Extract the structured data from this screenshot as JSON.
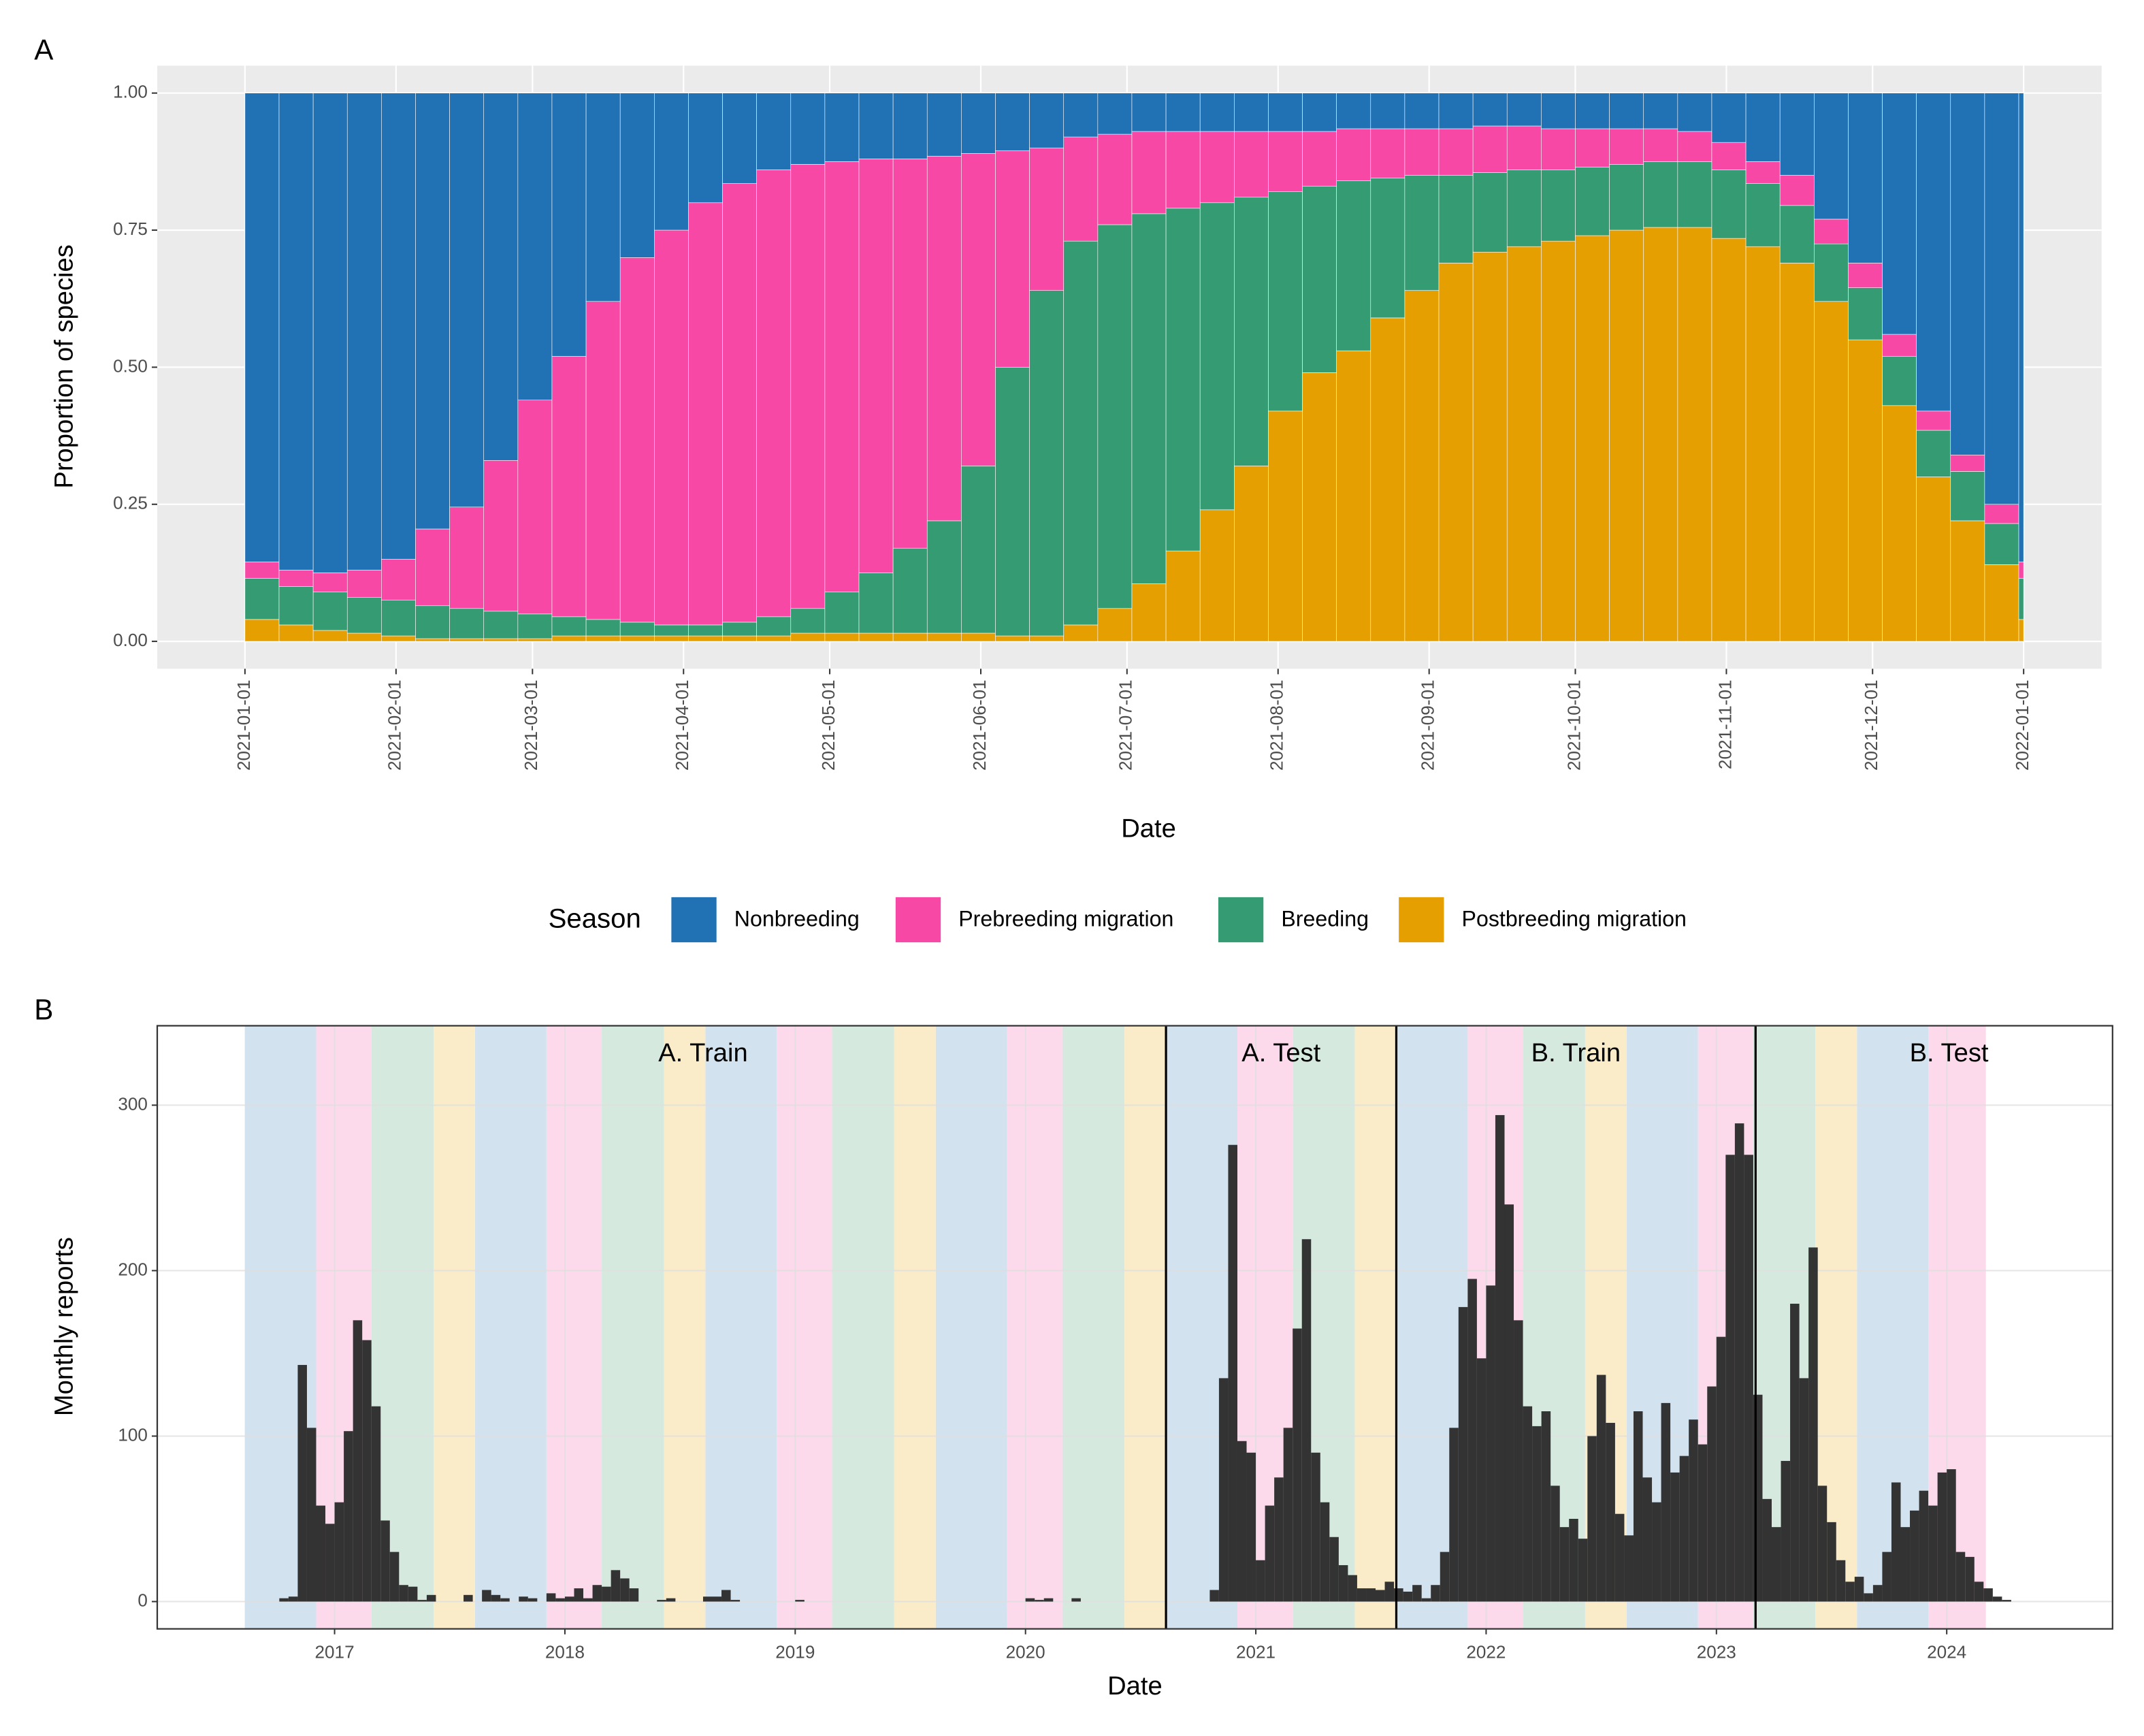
{
  "chart_data": [
    {
      "tag": "A",
      "type": "bar",
      "stacked": true,
      "x": [
        "2021-01-01",
        "2021-01-08",
        "2021-01-15",
        "2021-01-22",
        "2021-01-29",
        "2021-02-05",
        "2021-02-12",
        "2021-02-19",
        "2021-02-26",
        "2021-03-05",
        "2021-03-12",
        "2021-03-19",
        "2021-03-26",
        "2021-04-02",
        "2021-04-09",
        "2021-04-16",
        "2021-04-23",
        "2021-04-30",
        "2021-05-07",
        "2021-05-14",
        "2021-05-21",
        "2021-05-28",
        "2021-06-04",
        "2021-06-11",
        "2021-06-18",
        "2021-06-25",
        "2021-07-02",
        "2021-07-09",
        "2021-07-16",
        "2021-07-23",
        "2021-07-30",
        "2021-08-06",
        "2021-08-13",
        "2021-08-20",
        "2021-08-27",
        "2021-09-03",
        "2021-09-10",
        "2021-09-17",
        "2021-09-24",
        "2021-10-01",
        "2021-10-08",
        "2021-10-15",
        "2021-10-22",
        "2021-10-29",
        "2021-11-05",
        "2021-11-12",
        "2021-11-19",
        "2021-11-26",
        "2021-12-03",
        "2021-12-10",
        "2021-12-17",
        "2021-12-24",
        "2021-12-31"
      ],
      "xlim": [
        "2020-12-14",
        "2022-01-17"
      ],
      "xticks": [
        "2021-01-01",
        "2021-02-01",
        "2021-03-01",
        "2021-04-01",
        "2021-05-01",
        "2021-06-01",
        "2021-07-01",
        "2021-08-01",
        "2021-09-01",
        "2021-10-01",
        "2021-11-01",
        "2021-12-01",
        "2022-01-01"
      ],
      "ylim": [
        -0.05,
        1.05
      ],
      "yticks": [
        {
          "value": 0,
          "label": "0.00"
        },
        {
          "value": 0.25,
          "label": "0.25"
        },
        {
          "value": 0.5,
          "label": "0.50"
        },
        {
          "value": 0.75,
          "label": "0.75"
        },
        {
          "value": 1,
          "label": "1.00"
        }
      ],
      "xlabel": "Date",
      "ylabel": "Proportion of species",
      "legend_title": "Season",
      "legend": "bottom",
      "grid": true,
      "series": [
        {
          "name": "Nonbreeding",
          "color": "#2171b5",
          "values": [
            0.855,
            0.87,
            0.875,
            0.87,
            0.85,
            0.795,
            0.755,
            0.67,
            0.56,
            0.48,
            0.38,
            0.3,
            0.25,
            0.2,
            0.165,
            0.14,
            0.13,
            0.125,
            0.12,
            0.12,
            0.115,
            0.11,
            0.105,
            0.1,
            0.08,
            0.075,
            0.07,
            0.07,
            0.07,
            0.07,
            0.07,
            0.07,
            0.065,
            0.065,
            0.065,
            0.065,
            0.06,
            0.06,
            0.065,
            0.065,
            0.065,
            0.065,
            0.07,
            0.09,
            0.125,
            0.15,
            0.23,
            0.31,
            0.44,
            0.58,
            0.66,
            0.75,
            0.855
          ]
        },
        {
          "name": "Prebreeding migration",
          "color": "#f748a5",
          "values": [
            0.03,
            0.03,
            0.035,
            0.05,
            0.075,
            0.14,
            0.185,
            0.275,
            0.39,
            0.475,
            0.58,
            0.665,
            0.72,
            0.77,
            0.8,
            0.815,
            0.81,
            0.785,
            0.755,
            0.71,
            0.665,
            0.57,
            0.395,
            0.26,
            0.19,
            0.165,
            0.15,
            0.14,
            0.13,
            0.12,
            0.11,
            0.1,
            0.095,
            0.09,
            0.085,
            0.085,
            0.085,
            0.08,
            0.075,
            0.07,
            0.065,
            0.06,
            0.055,
            0.05,
            0.04,
            0.055,
            0.045,
            0.045,
            0.04,
            0.035,
            0.03,
            0.035,
            0.03
          ]
        },
        {
          "name": "Breeding",
          "color": "#359b73",
          "values": [
            0.075,
            0.07,
            0.07,
            0.065,
            0.065,
            0.06,
            0.055,
            0.05,
            0.045,
            0.035,
            0.03,
            0.025,
            0.02,
            0.02,
            0.025,
            0.035,
            0.045,
            0.075,
            0.11,
            0.155,
            0.205,
            0.305,
            0.49,
            0.63,
            0.7,
            0.7,
            0.675,
            0.625,
            0.56,
            0.49,
            0.4,
            0.34,
            0.31,
            0.255,
            0.21,
            0.16,
            0.145,
            0.14,
            0.13,
            0.125,
            0.12,
            0.12,
            0.12,
            0.125,
            0.115,
            0.105,
            0.105,
            0.095,
            0.09,
            0.085,
            0.09,
            0.075,
            0.075
          ]
        },
        {
          "name": "Postbreeding migration",
          "color": "#e69f00",
          "values": [
            0.04,
            0.03,
            0.02,
            0.015,
            0.01,
            0.005,
            0.005,
            0.005,
            0.005,
            0.01,
            0.01,
            0.01,
            0.01,
            0.01,
            0.01,
            0.01,
            0.015,
            0.015,
            0.015,
            0.015,
            0.015,
            0.015,
            0.01,
            0.01,
            0.03,
            0.06,
            0.105,
            0.165,
            0.24,
            0.32,
            0.42,
            0.49,
            0.53,
            0.59,
            0.64,
            0.69,
            0.71,
            0.72,
            0.73,
            0.74,
            0.75,
            0.755,
            0.755,
            0.735,
            0.72,
            0.69,
            0.62,
            0.55,
            0.43,
            0.3,
            0.22,
            0.14,
            0.04
          ]
        }
      ]
    },
    {
      "tag": "B",
      "type": "histogram",
      "color": "#333333",
      "bins": [
        2016.72,
        2016.76,
        2016.8,
        2016.84,
        2016.88,
        2016.92,
        2016.96,
        2017,
        2017.04,
        2017.08,
        2017.12,
        2017.16,
        2017.2,
        2017.24,
        2017.28,
        2017.32,
        2017.36,
        2017.4,
        2017.44,
        2017.48,
        2017.52,
        2017.56,
        2017.6,
        2017.64,
        2017.68,
        2017.72,
        2017.76,
        2017.8,
        2017.84,
        2017.88,
        2017.92,
        2017.96,
        2018,
        2018.04,
        2018.08,
        2018.12,
        2018.16,
        2018.2,
        2018.24,
        2018.28,
        2018.32,
        2018.36,
        2018.4,
        2018.44,
        2018.48,
        2018.52,
        2018.56,
        2018.6,
        2018.64,
        2018.68,
        2018.72,
        2018.76,
        2018.8,
        2018.84,
        2018.88,
        2018.92,
        2018.96,
        2019,
        2019.04,
        2019.08,
        2019.12,
        2019.16,
        2019.2,
        2019.24,
        2019.28,
        2019.32,
        2019.36,
        2019.4,
        2019.44,
        2019.48,
        2019.52,
        2019.56,
        2019.6,
        2019.64,
        2019.68,
        2019.72,
        2019.76,
        2019.8,
        2019.84,
        2019.88,
        2019.92,
        2019.96,
        2020,
        2020.04,
        2020.08,
        2020.12,
        2020.16,
        2020.2,
        2020.24,
        2020.28,
        2020.32,
        2020.36,
        2020.4,
        2020.44,
        2020.48,
        2020.52,
        2020.56,
        2020.6,
        2020.64,
        2020.68,
        2020.72,
        2020.76,
        2020.8,
        2020.84,
        2020.88,
        2020.92,
        2020.96,
        2021,
        2021.04,
        2021.08,
        2021.12,
        2021.16,
        2021.2,
        2021.24,
        2021.28,
        2021.32,
        2021.36,
        2021.4,
        2021.44,
        2021.48,
        2021.52,
        2021.56,
        2021.6,
        2021.64,
        2021.68,
        2021.72,
        2021.76,
        2021.8,
        2021.84,
        2021.88,
        2021.92,
        2021.96,
        2022,
        2022.04,
        2022.08,
        2022.12,
        2022.16,
        2022.2,
        2022.24,
        2022.28,
        2022.32,
        2022.36,
        2022.4,
        2022.44,
        2022.48,
        2022.52,
        2022.56,
        2022.6,
        2022.64,
        2022.68,
        2022.72,
        2022.76,
        2022.8,
        2022.84,
        2022.88,
        2022.92,
        2022.96,
        2023,
        2023.04,
        2023.08,
        2023.12,
        2023.16,
        2023.2,
        2023.24,
        2023.28,
        2023.32,
        2023.36,
        2023.4,
        2023.44,
        2023.48,
        2023.52,
        2023.56,
        2023.6,
        2023.64,
        2023.68,
        2023.72,
        2023.76,
        2023.8,
        2023.84,
        2023.88,
        2023.92,
        2023.96,
        2024,
        2024.04,
        2024.08,
        2024.12,
        2024.16,
        2024.2,
        2024.24,
        2024.28,
        2024.32,
        2024.36
      ],
      "values": [
        0,
        2,
        3,
        143,
        105,
        58,
        47,
        60,
        103,
        170,
        158,
        118,
        49,
        30,
        10,
        9,
        1,
        4,
        0,
        0,
        0,
        4,
        0,
        7,
        4,
        2,
        0,
        3,
        2,
        0,
        5,
        2,
        3,
        8,
        2,
        10,
        9,
        19,
        14,
        8,
        0,
        0,
        1,
        2,
        0,
        0,
        0,
        3,
        3,
        7,
        1,
        0,
        0,
        0,
        0,
        0,
        0,
        1,
        0,
        0,
        0,
        0,
        0,
        0,
        0,
        0,
        0,
        0,
        0,
        0,
        0,
        0,
        0,
        0,
        0,
        0,
        0,
        0,
        0,
        0,
        0,
        0,
        2,
        1,
        2,
        0,
        0,
        2,
        0,
        0,
        0,
        0,
        0,
        0,
        0,
        0,
        0,
        0,
        0,
        0,
        0,
        0,
        7,
        135,
        276,
        97,
        90,
        25,
        58,
        75,
        105,
        165,
        219,
        90,
        60,
        39,
        22,
        16,
        8,
        8,
        7,
        12,
        8,
        6,
        10,
        2,
        10,
        30,
        105,
        178,
        195,
        147,
        191,
        294,
        240,
        170,
        118,
        106,
        115,
        70,
        45,
        50,
        38,
        100,
        137,
        108,
        53,
        40,
        115,
        75,
        60,
        120,
        78,
        88,
        110,
        95,
        130,
        160,
        270,
        289,
        270,
        125,
        62,
        45,
        85,
        180,
        135,
        214,
        70,
        48,
        25,
        12,
        15,
        5,
        10,
        30,
        72,
        45,
        55,
        67,
        58,
        78,
        80,
        30,
        27,
        12,
        8,
        3,
        1,
        0,
        0
      ],
      "xlim": [
        2016.23,
        2024.72
      ],
      "xticks": [
        2017,
        2018,
        2019,
        2020,
        2021,
        2022,
        2023,
        2024
      ],
      "ylim": [
        -16.5,
        348
      ],
      "yticks": [
        0,
        100,
        200,
        300
      ],
      "grid": true,
      "xlabel": "Date",
      "ylabel": "Monthly reports",
      "bands": [
        {
          "color": "#d3e2ef",
          "spans": [
            [
              2016.61,
              2016.92
            ],
            [
              2017.61,
              2017.92
            ],
            [
              2018.61,
              2018.92
            ],
            [
              2019.61,
              2019.92
            ],
            [
              2020.61,
              2020.92
            ],
            [
              2021.61,
              2021.92
            ],
            [
              2022.61,
              2022.92
            ],
            [
              2023.61,
              2023.92
            ]
          ]
        },
        {
          "color": "#fcdaec",
          "spans": [
            [
              2016.92,
              2017.16
            ],
            [
              2017.92,
              2018.16
            ],
            [
              2018.92,
              2019.16
            ],
            [
              2019.92,
              2020.16
            ],
            [
              2020.92,
              2021.16
            ],
            [
              2021.92,
              2022.16
            ],
            [
              2022.92,
              2023.16
            ],
            [
              2023.92,
              2024.17
            ]
          ]
        },
        {
          "color": "#d6e9df",
          "spans": [
            [
              2017.16,
              2017.43
            ],
            [
              2018.16,
              2018.43
            ],
            [
              2019.16,
              2019.43
            ],
            [
              2020.16,
              2020.43
            ],
            [
              2021.16,
              2021.43
            ],
            [
              2022.16,
              2022.43
            ],
            [
              2023.16,
              2023.43
            ]
          ]
        },
        {
          "color": "#fbecc9",
          "spans": [
            [
              2017.43,
              2017.61
            ],
            [
              2018.43,
              2018.61
            ],
            [
              2019.43,
              2019.61
            ],
            [
              2020.43,
              2020.61
            ],
            [
              2021.43,
              2021.61
            ],
            [
              2022.43,
              2022.61
            ],
            [
              2023.43,
              2023.61
            ]
          ]
        }
      ],
      "splits": [
        2020.61,
        2021.61,
        2023.17
      ],
      "annotations": [
        {
          "text": "A. Train",
          "x": 2018.6
        },
        {
          "text": "A. Test",
          "x": 2021.11
        },
        {
          "text": "B. Train",
          "x": 2022.39
        },
        {
          "text": "B. Test",
          "x": 2024.01
        }
      ]
    }
  ]
}
